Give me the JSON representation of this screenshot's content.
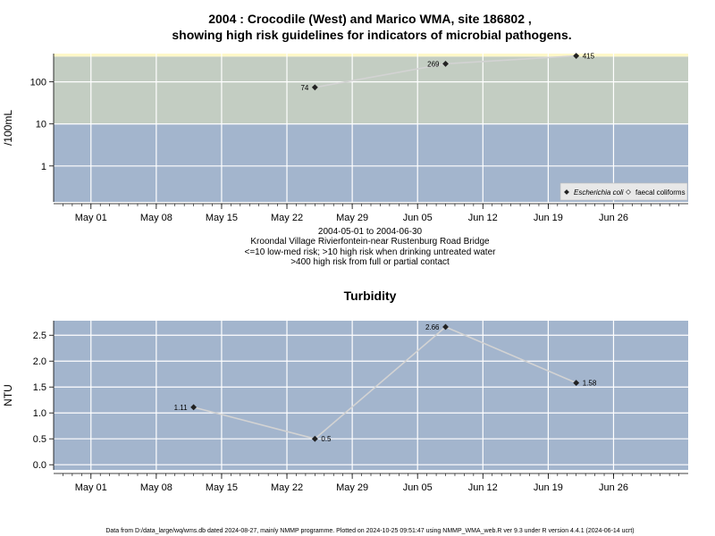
{
  "title_line1": "2004 : Crocodile (West) and Marico WMA, site 186802 ,",
  "title_line2": "showing high risk guidelines for indicators of microbial pathogens.",
  "caption": [
    "2004-05-01 to 2004-06-30",
    "Kroondal Village Rivierfontein-near Rustenburg Road Bridge",
    "<=10 low-med risk; >10 high risk when drinking untreated water",
    ">400 high risk from full or partial contact"
  ],
  "footer": "Data from D:/data_large/wq/wms.db dated 2024-08-27, mainly NMMP programme. Plotted on 2024-10-25 09:51:47 using NMMP_WMA_web.R ver 9.3 under R version 4.4.1 (2024-06-14 ucrt)",
  "colors": {
    "band_low": "#a3b5cd",
    "band_high": "#c3cdc2",
    "band_contact": "#fff8c8",
    "panel_bg": "#a3b5cd",
    "grid": "#ffffff",
    "line": "#d3d3d3",
    "point": "#222222"
  },
  "chart_data": [
    {
      "type": "scatter",
      "title": "",
      "xlabel": "",
      "ylabel": "/100mL",
      "y_scale": "log",
      "xlim": [
        "2004-04-27",
        "2004-07-04"
      ],
      "x_ticks": [
        "May 01",
        "May 08",
        "May 15",
        "May 22",
        "May 29",
        "Jun 05",
        "Jun 12",
        "Jun 19",
        "Jun 26"
      ],
      "x_tick_dates": [
        "2004-05-01",
        "2004-05-08",
        "2004-05-15",
        "2004-05-22",
        "2004-05-29",
        "2004-06-05",
        "2004-06-12",
        "2004-06-19",
        "2004-06-26"
      ],
      "y_ticks": [
        1,
        10,
        100
      ],
      "guideline_bands": [
        {
          "from": 0,
          "to": 10,
          "color": "#a3b5cd"
        },
        {
          "from": 10,
          "to": 400,
          "color": "#c3cdc2"
        },
        {
          "from": 400,
          "to": 500,
          "color": "#fff8c8"
        }
      ],
      "grid": true,
      "legend_position": "bottom-right",
      "legend": [
        {
          "label": "Escherichia coli",
          "italic": true,
          "marker": "filled-diamond"
        },
        {
          "label": "faecal coliforms",
          "italic": false,
          "marker": "open-diamond"
        }
      ],
      "series": [
        {
          "name": "Escherichia coli",
          "x": [
            "2004-05-25",
            "2004-06-08",
            "2004-06-22"
          ],
          "values": [
            74,
            269,
            415
          ],
          "labels": [
            "74",
            "269",
            "415"
          ]
        }
      ]
    },
    {
      "type": "line",
      "title": "Turbidity",
      "xlabel": "",
      "ylabel": "NTU",
      "xlim": [
        "2004-04-27",
        "2004-07-04"
      ],
      "ylim": [
        -0.1,
        2.78
      ],
      "x_ticks": [
        "May 01",
        "May 08",
        "May 15",
        "May 22",
        "May 29",
        "Jun 05",
        "Jun 12",
        "Jun 19",
        "Jun 26"
      ],
      "x_tick_dates": [
        "2004-05-01",
        "2004-05-08",
        "2004-05-15",
        "2004-05-22",
        "2004-05-29",
        "2004-06-05",
        "2004-06-12",
        "2004-06-19",
        "2004-06-26"
      ],
      "y_ticks": [
        "0.0",
        "0.5",
        "1.0",
        "1.5",
        "2.0",
        "2.5"
      ],
      "y_tick_values": [
        0,
        0.5,
        1,
        1.5,
        2,
        2.5
      ],
      "grid": true,
      "series": [
        {
          "x": [
            "2004-05-12",
            "2004-05-25",
            "2004-06-08",
            "2004-06-22"
          ],
          "values": [
            1.11,
            0.5,
            2.66,
            1.58
          ],
          "labels": [
            "1.11",
            "0.5",
            "2.66",
            "1.58"
          ]
        }
      ]
    }
  ]
}
